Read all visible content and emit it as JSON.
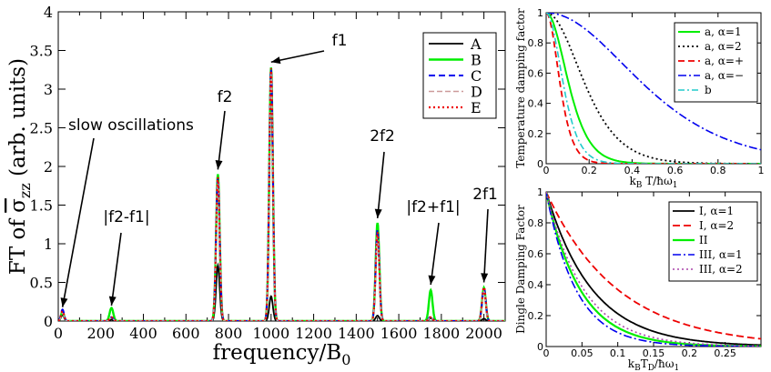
{
  "chart_data": [
    {
      "type": "line",
      "id": "main",
      "xlabel": "frequency/B",
      "xlabel_sub": "0",
      "ylabel_prefix": "FT of ",
      "ylabel_sigma": "σ",
      "ylabel_sub": "zz",
      "ylabel_suffix": " (arb. units)",
      "xlim": [
        0,
        2100
      ],
      "ylim": [
        0,
        4
      ],
      "xticks": [
        0,
        200,
        400,
        600,
        800,
        1000,
        1200,
        1400,
        1600,
        1800,
        2000
      ],
      "xtick_labels": [
        "0",
        "200",
        "400",
        "600",
        "800",
        "1000",
        "1200",
        "1400",
        "1600",
        "1800",
        "2000"
      ],
      "yticks": [
        0,
        0.5,
        1,
        1.5,
        2,
        2.5,
        3,
        3.5,
        4
      ],
      "ytick_labels": [
        "0",
        "0.5",
        "1",
        "1.5",
        "2",
        "2.5",
        "3",
        "3.5",
        "4"
      ],
      "legend_position": "top-right",
      "series": [
        {
          "name": "A",
          "color": "#000000",
          "dash": "none",
          "width": 1.8,
          "peaks": [
            [
              20,
              0.08
            ],
            [
              250,
              0.02
            ],
            [
              750,
              0.72
            ],
            [
              1000,
              0.32
            ],
            [
              1500,
              0.07
            ],
            [
              1750,
              0.04
            ],
            [
              2000,
              0.03
            ]
          ]
        },
        {
          "name": "B",
          "color": "#00ee00",
          "dash": "none",
          "width": 2.4,
          "peaks": [
            [
              20,
              0.12
            ],
            [
              250,
              0.17
            ],
            [
              750,
              1.9
            ],
            [
              1000,
              3.28
            ],
            [
              1500,
              1.27
            ],
            [
              1750,
              0.4
            ],
            [
              2000,
              0.43
            ]
          ]
        },
        {
          "name": "C",
          "color": "#0000ee",
          "dash": "7,4",
          "width": 2,
          "peaks": [
            [
              20,
              0.15
            ],
            [
              250,
              0.05
            ],
            [
              750,
              1.85
            ],
            [
              1000,
              3.25
            ],
            [
              1500,
              1.18
            ],
            [
              1750,
              0.06
            ],
            [
              2000,
              0.42
            ]
          ]
        },
        {
          "name": "D",
          "color": "#cc9999",
          "dash": "6,3",
          "width": 1.5,
          "peaks": [
            [
              20,
              0.1
            ],
            [
              250,
              0.04
            ],
            [
              750,
              1.8
            ],
            [
              1000,
              3.2
            ],
            [
              1500,
              1.1
            ],
            [
              1750,
              0.05
            ],
            [
              2000,
              0.38
            ]
          ]
        },
        {
          "name": "E",
          "color": "#ee0000",
          "dash": "2,3",
          "width": 2.2,
          "peaks": [
            [
              20,
              0.13
            ],
            [
              250,
              0.05
            ],
            [
              750,
              1.86
            ],
            [
              1000,
              3.27
            ],
            [
              1500,
              1.15
            ],
            [
              1750,
              0.05
            ],
            [
              2000,
              0.44
            ]
          ]
        }
      ],
      "annotations": [
        {
          "text": "slow oscillations",
          "x": 20,
          "y": 0.18
        },
        {
          "text": "|f2-f1|",
          "x": 250,
          "y": 0.2
        },
        {
          "text": "f2",
          "x": 750,
          "y": 1.96
        },
        {
          "text": "f1",
          "x": 1000,
          "y": 3.35
        },
        {
          "text": "2f2",
          "x": 1500,
          "y": 1.33
        },
        {
          "text": "|f2+f1|",
          "x": 1750,
          "y": 0.47
        },
        {
          "text": "2f1",
          "x": 2000,
          "y": 0.5
        }
      ]
    },
    {
      "type": "line",
      "id": "temperature",
      "ylabel": "Temperature damping factor",
      "xlabel_main": "k",
      "xlabel_sub": "B",
      "xlabel_rest": " T/ħω",
      "xlabel_sub2": "1",
      "xlim": [
        0,
        1
      ],
      "ylim": [
        0,
        1
      ],
      "xticks": [
        0,
        0.2,
        0.4,
        0.6,
        0.8,
        1
      ],
      "xtick_labels": [
        "0",
        "0.2",
        "0.4",
        "0.6",
        "0.8",
        "1"
      ],
      "yticks": [
        0,
        0.2,
        0.4,
        0.6,
        0.8,
        1
      ],
      "ytick_labels": [
        "0",
        "0.2",
        "0.4",
        "0.6",
        "0.8",
        "1"
      ],
      "legend_position": "top-right",
      "series": [
        {
          "name": "a, α=1",
          "color": "#00ee00",
          "dash": "none",
          "width": 2,
          "k": 19.7
        },
        {
          "name": "a, α=2",
          "color": "#000000",
          "dash": "2,3",
          "width": 1.8,
          "k": 11.5
        },
        {
          "name": "a, α=+",
          "color": "#ee0000",
          "dash": "7,4",
          "width": 1.8,
          "k": 32
        },
        {
          "name": "a, α=−",
          "color": "#0000ee",
          "dash": "9,3,2,3",
          "width": 1.6,
          "k": 4.6
        },
        {
          "name": "b",
          "color": "#22cccc",
          "dash": "7,3,2,3",
          "width": 1.6,
          "k": 26
        }
      ]
    },
    {
      "type": "line",
      "id": "dingle",
      "ylabel": "Dingle Damping Factor",
      "xlabel_main": "k",
      "xlabel_sub": "B",
      "xlabel_rest": "T",
      "xlabel_sub2": "D",
      "xlabel_rest2": "/ħω",
      "xlabel_sub3": "1",
      "xlim": [
        0,
        0.3
      ],
      "ylim": [
        0,
        1
      ],
      "xticks": [
        0,
        0.05,
        0.1,
        0.15,
        0.2,
        0.25
      ],
      "xtick_labels": [
        "0",
        "0.05",
        "0.1",
        "0.15",
        "0.2",
        "0.25"
      ],
      "yticks": [
        0,
        0.2,
        0.4,
        0.6,
        0.8,
        1
      ],
      "ytick_labels": [
        "0",
        "0.2",
        "0.4",
        "0.6",
        "0.8",
        "1"
      ],
      "legend_position": "top-right",
      "series": [
        {
          "name": "I, α=1",
          "color": "#000000",
          "dash": "none",
          "width": 1.8,
          "k": 15.5
        },
        {
          "name": "I, α=2",
          "color": "#ee0000",
          "dash": "8,4",
          "width": 1.8,
          "k": 10
        },
        {
          "name": "II",
          "color": "#00ee00",
          "dash": "none",
          "width": 2.2,
          "k": 21
        },
        {
          "name": "III, α=1",
          "color": "#0000ee",
          "dash": "9,3,2,3",
          "width": 1.6,
          "k": 24
        },
        {
          "name": "III, α=2",
          "color": "#aa44aa",
          "dash": "2,3",
          "width": 1.6,
          "k": 19
        }
      ]
    }
  ]
}
